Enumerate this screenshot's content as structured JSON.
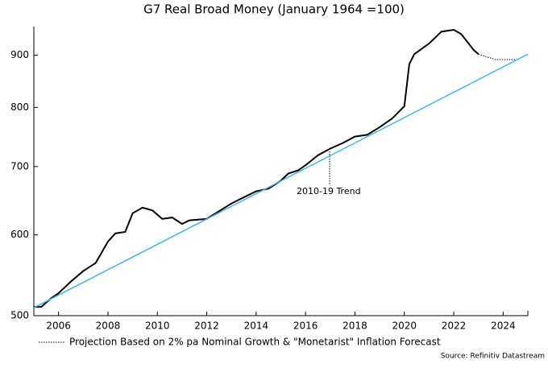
{
  "chart_data": {
    "type": "line",
    "title": "G7 Real Broad Money (January 1964 =100)",
    "xlim": [
      2005,
      2025
    ],
    "xticks": [
      2006,
      2008,
      2010,
      2012,
      2014,
      2016,
      2018,
      2020,
      2022,
      2024
    ],
    "ylim": [
      500,
      960
    ],
    "yticks": [
      500,
      600,
      700,
      800,
      900
    ],
    "log_scale": true,
    "series": [
      {
        "color": "#000000",
        "style": "solid",
        "x": [
          2005.0,
          2005.3,
          2005.7,
          2006.0,
          2006.5,
          2007.0,
          2007.5,
          2008.0,
          2008.3,
          2008.7,
          2009.0,
          2009.4,
          2009.8,
          2010.2,
          2010.6,
          2011.0,
          2011.3,
          2012.0,
          2012.5,
          2013.0,
          2013.5,
          2014.0,
          2014.5,
          2015.0,
          2015.3,
          2015.7,
          2016.0,
          2016.5,
          2017.0,
          2017.5,
          2018.0,
          2018.5,
          2019.0,
          2019.5,
          2020.0,
          2020.2,
          2020.4,
          2021.0,
          2021.5,
          2022.0,
          2022.3,
          2022.6,
          2022.8,
          2023.0
        ],
        "values": [
          510,
          510,
          520,
          526,
          540,
          553,
          563,
          591,
          602,
          604,
          630,
          638,
          634,
          622,
          624,
          615,
          620,
          622,
          633,
          644,
          653,
          662,
          666,
          678,
          689,
          694,
          702,
          718,
          729,
          738,
          749,
          752,
          765,
          780,
          802,
          882,
          902,
          924,
          949,
          953,
          944,
          924,
          911,
          902
        ]
      },
      {
        "color": "#3fb6e8",
        "style": "solid",
        "x": [
          2005,
          2025
        ],
        "values": [
          509,
          902
        ]
      },
      {
        "name": "Projection Based on 2% pa Nominal Growth & \"Monetarist\" Inflation Forecast",
        "color": "#000000",
        "style": "dotted",
        "x": [
          2023.0,
          2023.7,
          2024.5
        ],
        "values": [
          902,
          891,
          891
        ]
      }
    ],
    "annotation": "2010-19 Trend",
    "source": "Source: Refinitiv Datastream"
  }
}
